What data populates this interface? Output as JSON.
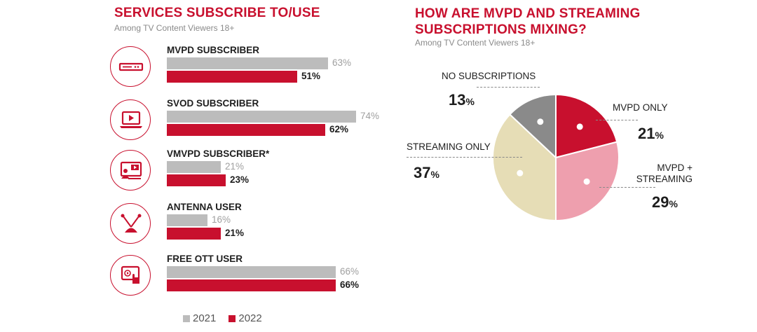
{
  "left_panel": {
    "title": "SERVICES SUBSCRIBE TO/USE",
    "subtitle": "Among TV Content Viewers 18+"
  },
  "right_panel": {
    "title": "HOW ARE MVPD AND STREAMING SUBSCRIPTIONS MIXING?",
    "subtitle": "Among TV Content Viewers 18+"
  },
  "legend": {
    "label_2021": "2021",
    "label_2022": "2022"
  },
  "colors": {
    "accent": "#c8102e",
    "gray_2021": "#bcbcbc",
    "pink": "#ee9fae",
    "beige": "#e6ddb6",
    "dark_gray": "#8a8a8a"
  },
  "chart_data": [
    {
      "type": "bar",
      "title": "SERVICES SUBSCRIBE TO/USE",
      "subtitle": "Among TV Content Viewers 18+",
      "orientation": "horizontal",
      "categories": [
        "MVPD SUBSCRIBER",
        "SVOD SUBSCRIBER",
        "VMVPD SUBSCRIBER*",
        "ANTENNA USER",
        "FREE OTT USER"
      ],
      "icons": [
        "set-top-box-icon",
        "laptop-play-icon",
        "video-call-icon",
        "antenna-icon",
        "tablet-touch-icon"
      ],
      "series": [
        {
          "name": "2021",
          "values": [
            63,
            74,
            21,
            16,
            66
          ],
          "labels": [
            "63%",
            "74%",
            "21%",
            "16%",
            "66%"
          ]
        },
        {
          "name": "2022",
          "values": [
            51,
            62,
            23,
            21,
            66
          ],
          "labels": [
            "51%",
            "62%",
            "23%",
            "21%",
            "66%"
          ]
        }
      ],
      "xlim": [
        0,
        100
      ],
      "legend": "bottom"
    },
    {
      "type": "pie",
      "title": "HOW ARE MVPD AND STREAMING SUBSCRIPTIONS MIXING?",
      "subtitle": "Among TV Content Viewers 18+",
      "slices": [
        {
          "label": "MVPD ONLY",
          "value": 21,
          "number": "21",
          "color": "#c8102e"
        },
        {
          "label": "MVPD + STREAMING",
          "value": 29,
          "number": "29",
          "color": "#ee9fae"
        },
        {
          "label": "STREAMING ONLY",
          "value": 37,
          "number": "37",
          "color": "#e6ddb6"
        },
        {
          "label": "NO SUBSCRIPTIONS",
          "value": 13,
          "number": "13",
          "color": "#8a8a8a"
        }
      ],
      "percent_sign": "%"
    }
  ]
}
